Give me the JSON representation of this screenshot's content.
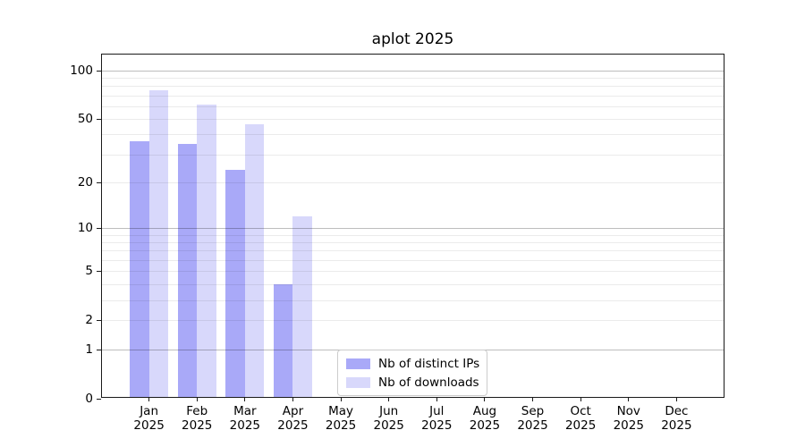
{
  "chart_data": {
    "type": "bar",
    "title": "aplot 2025",
    "x_categories": [
      "Jan",
      "Feb",
      "Mar",
      "Apr",
      "May",
      "Jun",
      "Jul",
      "Aug",
      "Sep",
      "Oct",
      "Nov",
      "Dec"
    ],
    "x_tick_year": "2025",
    "series": [
      {
        "name": "Nb of distinct IPs",
        "color": "#a9a9f8",
        "values": [
          36,
          35,
          24,
          4,
          null,
          null,
          null,
          null,
          null,
          null,
          null,
          null
        ]
      },
      {
        "name": "Nb of downloads",
        "color": "#d8d8fb",
        "values": [
          75,
          61,
          46,
          12,
          null,
          null,
          null,
          null,
          null,
          null,
          null,
          null
        ]
      }
    ],
    "y_scale": "log10(value+1)",
    "y_ticks": [
      0,
      1,
      2,
      5,
      10,
      20,
      50,
      100
    ],
    "y_major_gridlines": [
      1,
      10,
      100
    ],
    "y_minor_gridlines": [
      2,
      3,
      4,
      5,
      6,
      7,
      8,
      9,
      20,
      30,
      40,
      50,
      60,
      70,
      80,
      90
    ],
    "ylim": [
      0,
      126
    ],
    "grid": "horizontal",
    "legend_position": "inside lower-center"
  }
}
